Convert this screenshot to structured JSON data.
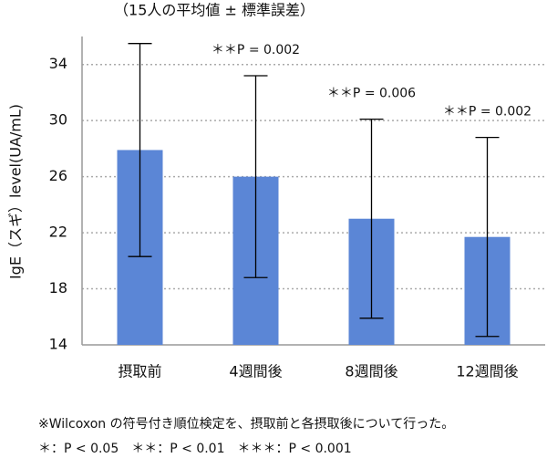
{
  "chart_data": {
    "type": "bar",
    "title": "（15人の平均値 ± 標準誤差）",
    "y_label": "IgE（スギ）level(UA/mL)",
    "categories": [
      "摂取前",
      "4週間後",
      "8週間後",
      "12週間後"
    ],
    "values": [
      27.9,
      26.0,
      23.0,
      21.7
    ],
    "errors": [
      7.6,
      7.2,
      7.1,
      7.1
    ],
    "color": "#5b86d6",
    "annotations": [
      null,
      "＊＊P = 0.002",
      "＊＊P = 0.006",
      "＊＊P = 0.002"
    ],
    "ylim": [
      14,
      36
    ],
    "yticks": [
      14,
      18,
      22,
      26,
      30,
      34
    ],
    "grid": true,
    "notes": [
      "※Wilcoxon の符号付き順位検定を、摂取前と各摂取後について行った。",
      "＊：P < 0.05　＊＊：P < 0.01　＊＊＊：P < 0.001"
    ]
  }
}
